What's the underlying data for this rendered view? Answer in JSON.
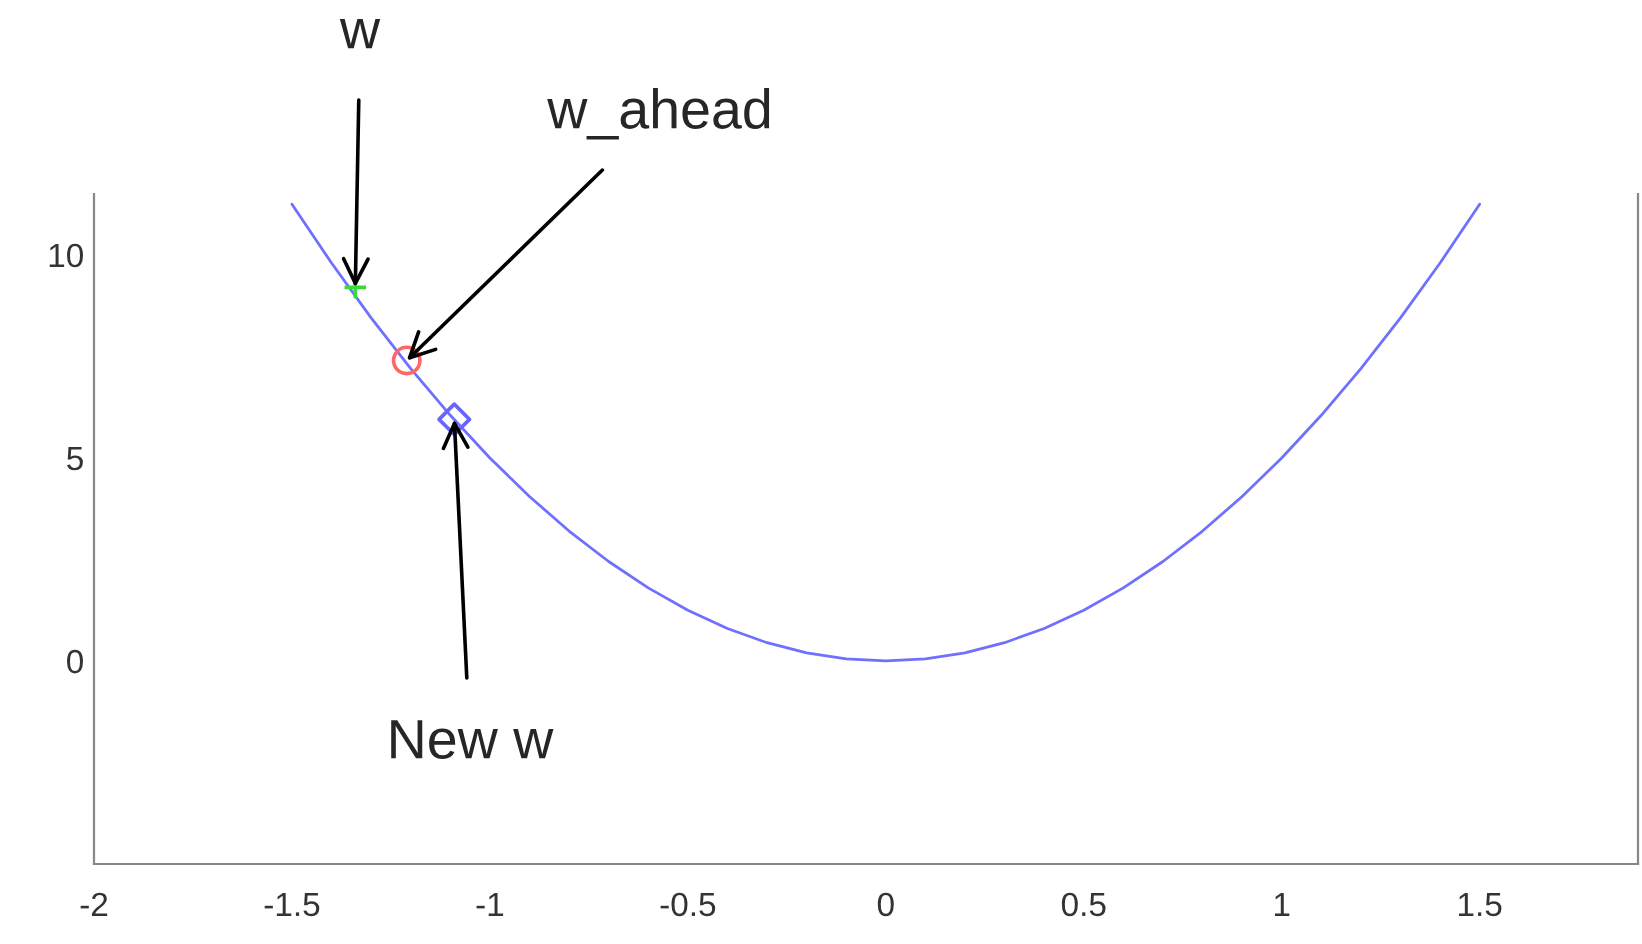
{
  "chart_data": {
    "type": "line",
    "xlim": [
      -2,
      1.9
    ],
    "ylim": [
      -5,
      11.5
    ],
    "xticks": [
      -2,
      -1.5,
      -1,
      -0.5,
      0,
      0.5,
      1,
      1.5
    ],
    "yticks": [
      0,
      5,
      10
    ],
    "grid": false,
    "series": [
      {
        "color": "#7070ff",
        "marker": "none",
        "line_style": "solid",
        "x": [
          -1.5,
          -1.4,
          -1.3,
          -1.2,
          -1.1,
          -1.0,
          -0.9,
          -0.8,
          -0.7,
          -0.6,
          -0.5,
          -0.4,
          -0.3,
          -0.2,
          -0.1,
          0,
          0.1,
          0.2,
          0.3,
          0.4,
          0.5,
          0.6,
          0.7,
          0.8,
          0.9,
          1.0,
          1.1,
          1.2,
          1.3,
          1.4,
          1.5
        ],
        "values": [
          11.25,
          9.8,
          8.45,
          7.2,
          6.05,
          5.0,
          4.05,
          3.2,
          2.45,
          1.8,
          1.25,
          0.8,
          0.45,
          0.2,
          0.05,
          0,
          0.05,
          0.2,
          0.45,
          0.8,
          1.25,
          1.8,
          2.45,
          3.2,
          4.05,
          5.0,
          6.05,
          7.2,
          8.45,
          9.8,
          11.25
        ]
      },
      {
        "type": "scatter",
        "color": "#33dd33",
        "marker": "cross",
        "x": [
          -1.34
        ],
        "values": [
          9.2
        ]
      },
      {
        "type": "scatter",
        "color": "#ff6666",
        "marker": "circle",
        "x": [
          -1.21
        ],
        "values": [
          7.4
        ]
      },
      {
        "type": "scatter",
        "color": "#6666ff",
        "marker": "diamond",
        "x": [
          -1.09
        ],
        "values": [
          5.95
        ]
      }
    ],
    "annotations": [
      {
        "text": "w",
        "x": -1.34,
        "y": 9.2
      },
      {
        "text": "w_ahead",
        "x": -1.21,
        "y": 7.4
      },
      {
        "text": "New w",
        "x": -1.09,
        "y": 5.95
      }
    ]
  }
}
